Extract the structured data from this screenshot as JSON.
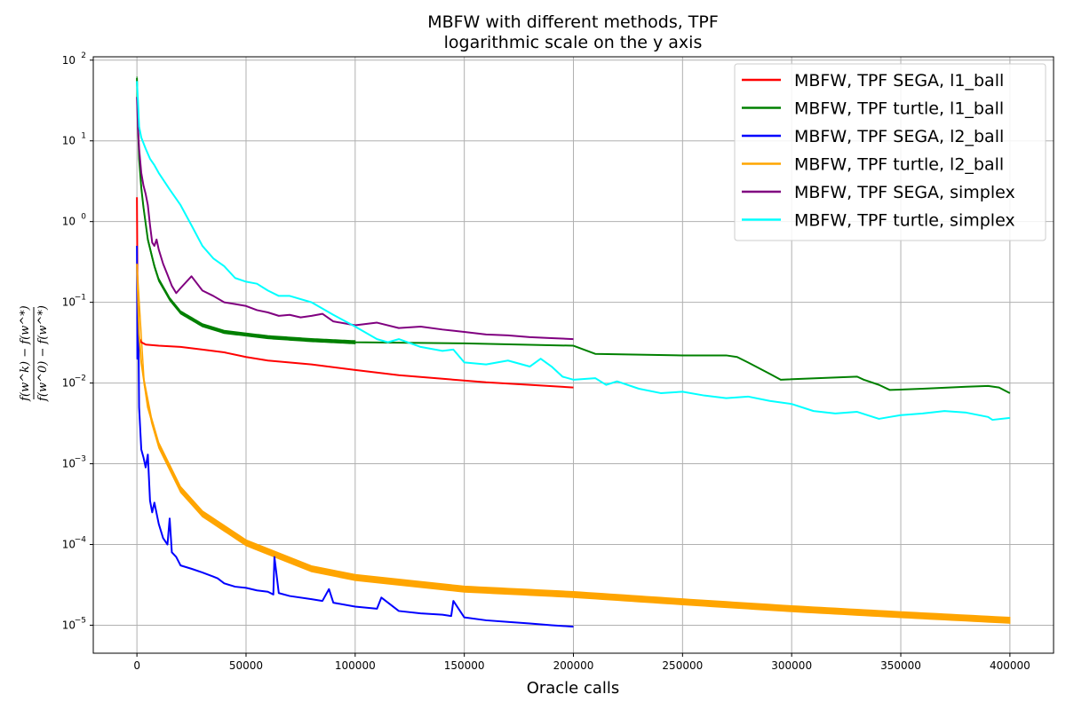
{
  "chart_data": {
    "type": "line",
    "title": "MBFW with different methods, TPF",
    "subtitle": "logarithmic scale on the y axis",
    "xlabel": "Oracle calls",
    "ylabel_numerator": "f(w^k) − f(w^*)",
    "ylabel_denominator": "f(w^0) − f(w^*)",
    "xlim": [
      -20000,
      420000
    ],
    "ylim": [
      4.5e-06,
      110
    ],
    "yscale": "log",
    "grid": true,
    "legend_position": "top-right",
    "x_ticks": [
      0,
      50000,
      100000,
      150000,
      200000,
      250000,
      300000,
      350000,
      400000
    ],
    "x_tick_labels": [
      "0",
      "50000",
      "100000",
      "150000",
      "200000",
      "250000",
      "300000",
      "350000",
      "400000"
    ],
    "y_ticks": [
      1e-05,
      0.0001,
      0.001,
      0.01,
      0.1,
      1,
      10,
      100
    ],
    "y_tick_exponents": [
      "−5",
      "−4",
      "−3",
      "−2",
      "−1",
      "0",
      "1",
      "2"
    ],
    "series": [
      {
        "name": "MBFW, TPF SEGA, l1_ball",
        "color": "#ff0000",
        "line_width": 2,
        "x": [
          0,
          300,
          1000,
          2000,
          4000,
          10000,
          20000,
          30000,
          40000,
          50000,
          60000,
          80000,
          100000,
          120000,
          140000,
          160000,
          180000,
          200000
        ],
        "y": [
          2.0,
          0.1,
          0.036,
          0.032,
          0.03,
          0.029,
          0.028,
          0.026,
          0.024,
          0.021,
          0.019,
          0.017,
          0.0145,
          0.0125,
          0.0113,
          0.0102,
          0.0095,
          0.0088
        ]
      },
      {
        "name": "MBFW, TPF turtle, l1_ball",
        "color": "#008000",
        "line_width": 2,
        "band": [
          0,
          100000
        ],
        "x": [
          0,
          500,
          1000,
          2000,
          3000,
          5000,
          8000,
          10000,
          15000,
          20000,
          30000,
          40000,
          60000,
          80000,
          100000,
          150000,
          200000,
          210000,
          250000,
          270000,
          275000,
          280000,
          290000,
          295000,
          330000,
          333000,
          340000,
          345000,
          360000,
          380000,
          390000,
          395000,
          400000
        ],
        "y": [
          60,
          15,
          6,
          2.6,
          1.5,
          0.6,
          0.28,
          0.19,
          0.11,
          0.075,
          0.052,
          0.043,
          0.037,
          0.034,
          0.032,
          0.031,
          0.029,
          0.023,
          0.022,
          0.022,
          0.021,
          0.018,
          0.013,
          0.011,
          0.012,
          0.011,
          0.0095,
          0.0082,
          0.0085,
          0.009,
          0.0092,
          0.0088,
          0.0075
        ]
      },
      {
        "name": "MBFW, TPF SEGA, l2_ball",
        "color": "#0000ff",
        "line_width": 2,
        "x": [
          0,
          200,
          600,
          1000,
          2000,
          3000,
          4000,
          5000,
          6000,
          7000,
          8000,
          10000,
          12000,
          14000,
          15000,
          16000,
          18000,
          20000,
          25000,
          30000,
          35000,
          37000,
          40000,
          45000,
          50000,
          55000,
          60000,
          62500,
          63000,
          65000,
          70000,
          80000,
          85000,
          88000,
          90000,
          100000,
          110000,
          112000,
          120000,
          130000,
          140000,
          144000,
          145000,
          150000,
          160000,
          170000,
          180000,
          190000,
          200000
        ],
        "y": [
          0.5,
          0.02,
          0.09,
          0.005,
          0.0015,
          0.0012,
          0.0009,
          0.0013,
          0.00035,
          0.00025,
          0.00033,
          0.00018,
          0.00012,
          0.0001,
          0.00021,
          8e-05,
          7e-05,
          5.5e-05,
          5e-05,
          4.5e-05,
          4e-05,
          3.8e-05,
          3.3e-05,
          3e-05,
          2.9e-05,
          2.7e-05,
          2.6e-05,
          2.4e-05,
          7e-05,
          2.5e-05,
          2.3e-05,
          2.1e-05,
          2e-05,
          2.8e-05,
          1.9e-05,
          1.7e-05,
          1.6e-05,
          2.2e-05,
          1.5e-05,
          1.4e-05,
          1.35e-05,
          1.3e-05,
          2e-05,
          1.25e-05,
          1.15e-05,
          1.1e-05,
          1.05e-05,
          1e-05,
          9.6e-06
        ]
      },
      {
        "name": "MBFW, TPF turtle, l2_ball",
        "color": "#ffa500",
        "line_width": 2,
        "band": [
          0,
          400000
        ],
        "x": [
          0,
          1000,
          2000,
          5000,
          10000,
          20000,
          30000,
          50000,
          80000,
          100000,
          150000,
          200000,
          250000,
          300000,
          350000,
          400000
        ],
        "y": [
          0.3,
          0.04,
          0.018,
          0.005,
          0.0017,
          0.00048,
          0.00024,
          0.000105,
          5e-05,
          3.9e-05,
          2.8e-05,
          2.4e-05,
          1.95e-05,
          1.6e-05,
          1.35e-05,
          1.15e-05
        ]
      },
      {
        "name": "MBFW, TPF SEGA, simplex",
        "color": "#800080",
        "line_width": 2,
        "x": [
          0,
          500,
          1000,
          2000,
          3000,
          4000,
          5000,
          6000,
          7000,
          8000,
          9000,
          10000,
          12000,
          14000,
          16000,
          18000,
          20000,
          25000,
          30000,
          35000,
          40000,
          45000,
          50000,
          55000,
          60000,
          65000,
          70000,
          75000,
          80000,
          85000,
          90000,
          100000,
          110000,
          120000,
          130000,
          140000,
          150000,
          160000,
          170000,
          180000,
          190000,
          200000
        ],
        "y": [
          35,
          14,
          8,
          4,
          2.8,
          2.2,
          1.6,
          0.9,
          0.55,
          0.5,
          0.6,
          0.45,
          0.3,
          0.22,
          0.16,
          0.13,
          0.15,
          0.21,
          0.14,
          0.12,
          0.1,
          0.095,
          0.09,
          0.08,
          0.075,
          0.068,
          0.07,
          0.065,
          0.068,
          0.072,
          0.058,
          0.052,
          0.056,
          0.048,
          0.05,
          0.046,
          0.043,
          0.04,
          0.039,
          0.037,
          0.036,
          0.035
        ]
      },
      {
        "name": "MBFW, TPF turtle, simplex",
        "color": "#00ffff",
        "line_width": 2,
        "x": [
          0,
          500,
          1000,
          2000,
          4000,
          6000,
          8000,
          10000,
          15000,
          20000,
          25000,
          30000,
          35000,
          40000,
          45000,
          50000,
          55000,
          60000,
          65000,
          70000,
          80000,
          90000,
          100000,
          110000,
          115000,
          120000,
          130000,
          140000,
          145000,
          150000,
          160000,
          170000,
          180000,
          185000,
          190000,
          195000,
          200000,
          210000,
          215000,
          220000,
          230000,
          240000,
          250000,
          260000,
          270000,
          280000,
          290000,
          300000,
          310000,
          320000,
          330000,
          340000,
          345000,
          350000,
          360000,
          370000,
          380000,
          390000,
          392000,
          400000
        ],
        "y": [
          55,
          30,
          15,
          11,
          8,
          6,
          5,
          4,
          2.5,
          1.6,
          0.9,
          0.5,
          0.35,
          0.28,
          0.2,
          0.18,
          0.17,
          0.14,
          0.12,
          0.12,
          0.1,
          0.07,
          0.05,
          0.035,
          0.032,
          0.035,
          0.028,
          0.025,
          0.026,
          0.018,
          0.017,
          0.019,
          0.016,
          0.02,
          0.016,
          0.012,
          0.011,
          0.0115,
          0.0095,
          0.0105,
          0.0085,
          0.0075,
          0.0078,
          0.007,
          0.0065,
          0.0068,
          0.006,
          0.0055,
          0.0045,
          0.0042,
          0.0044,
          0.0036,
          0.0038,
          0.004,
          0.0042,
          0.0045,
          0.0043,
          0.0038,
          0.0035,
          0.0037
        ]
      }
    ]
  }
}
